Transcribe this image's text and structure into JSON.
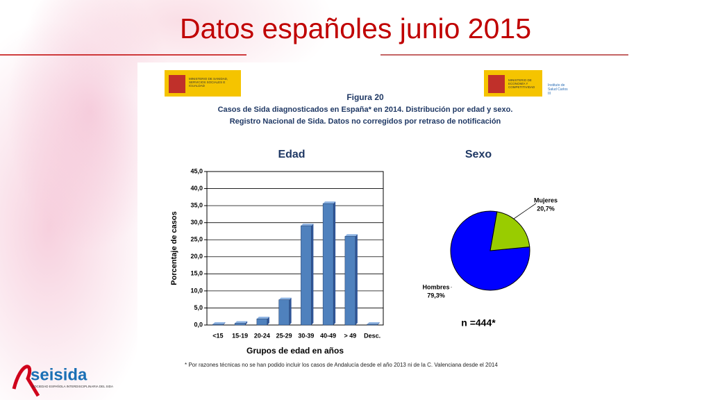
{
  "slide": {
    "title": "Datos españoles junio 2015"
  },
  "logos": {
    "left": "MINISTERIO DE SANIDAD, SERVICIOS SOCIALES E IGUALDAD",
    "right": "MINISTERIO DE ECONOMÍA Y COMPETITIVIDAD",
    "institute": "Instituto de Salud Carlos III",
    "brand": "seisida",
    "brand_subtitle": "SOCIEDAD ESPAÑOLA INTERDISCIPLINARIA DEL SIDA"
  },
  "figure": {
    "label": "Figura 20",
    "title": "Casos de Sida diagnosticados en España* en 2014. Distribución por edad y sexo.",
    "subtitle": "Registro Nacional de Sida. Datos no corregidos por retraso de notificación",
    "footnote": "* Por razones técnicas no se han podido incluir los casos de Andalucía desde el año 2013 ni de la C. Valenciana desde el 2014"
  },
  "chart_data": [
    {
      "type": "bar",
      "title": "Edad",
      "xlabel": "Grupos de edad en años",
      "ylabel": "Porcentaje de casos",
      "categories": [
        "<15",
        "15-19",
        "20-24",
        "25-29",
        "30-39",
        "40-49",
        "> 49",
        "Desc."
      ],
      "values": [
        0.2,
        0.5,
        1.8,
        7.4,
        29.1,
        35.6,
        26.0,
        0.2
      ],
      "color": "#4f81bd",
      "ylim": [
        0,
        45
      ],
      "yticks": [
        {
          "value": 0,
          "label": "0,0"
        },
        {
          "value": 5,
          "label": "5,0"
        },
        {
          "value": 10,
          "label": "10,0"
        },
        {
          "value": 15,
          "label": "15,0"
        },
        {
          "value": 20,
          "label": "20,0"
        },
        {
          "value": 25,
          "label": "25,0"
        },
        {
          "value": 30,
          "label": "30,0"
        },
        {
          "value": 35,
          "label": "35,0"
        },
        {
          "value": 40,
          "label": "40,0"
        },
        {
          "value": 45,
          "label": "45,0"
        }
      ],
      "grid": true
    },
    {
      "type": "pie",
      "title": "Sexo",
      "categories": [
        "Hombres",
        "Mujeres"
      ],
      "values": [
        79.3,
        20.7
      ],
      "value_labels": [
        "79,3%",
        "20,7%"
      ],
      "colors": [
        "#0000ff",
        "#99cc00"
      ],
      "annotation": "n =444*"
    }
  ]
}
